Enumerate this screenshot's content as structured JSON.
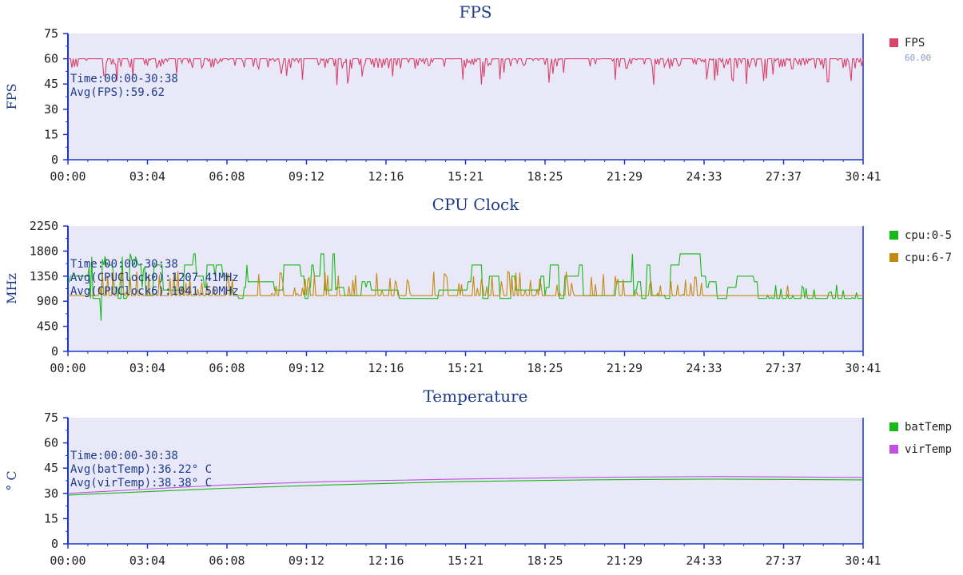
{
  "x_ticks": [
    "00:00",
    "03:04",
    "06:08",
    "09:12",
    "12:16",
    "15:21",
    "18:25",
    "21:29",
    "24:33",
    "27:37",
    "30:41"
  ],
  "colors": {
    "plot_bg": "#e8e8f8",
    "axis": "#1a36d0",
    "title": "#1d3b8a"
  },
  "chart_data": [
    {
      "type": "line",
      "title": "FPS",
      "ylabel": "FPS",
      "ylim": [
        0,
        75
      ],
      "y_ticks": [
        "0",
        "15",
        "30",
        "45",
        "60",
        "75"
      ],
      "xlim_seconds": [
        0,
        1841
      ],
      "annotations": [
        "Time:00:00-30:38",
        "Avg(FPS):59.62"
      ],
      "series": [
        {
          "name": "FPS",
          "color": "#d9436a",
          "legend_value": "60.00",
          "baseline": 60,
          "noise": "drops"
        }
      ]
    },
    {
      "type": "line",
      "title": "CPU Clock",
      "ylabel": "MHz",
      "ylim": [
        0,
        2250
      ],
      "y_ticks": [
        "0",
        "450",
        "900",
        "1350",
        "1800",
        "2250"
      ],
      "xlim_seconds": [
        0,
        1841
      ],
      "annotations": [
        "Time:00:00-30:38",
        "Avg(CPUClock0):1207.41MHz",
        "Avg(CPUClock6):1041.50MHz"
      ],
      "series": [
        {
          "name": "cpu:0-5",
          "color": "#18b818",
          "baseline": 1100,
          "noise": "step"
        },
        {
          "name": "cpu:6-7",
          "color": "#c28a10",
          "baseline": 1000,
          "noise": "spikes"
        }
      ]
    },
    {
      "type": "line",
      "title": "Temperature",
      "ylabel": "° C",
      "ylim": [
        0,
        75
      ],
      "y_ticks": [
        "0",
        "15",
        "30",
        "45",
        "60",
        "75"
      ],
      "xlim_seconds": [
        0,
        1841
      ],
      "annotations": [
        "Time:00:00-30:38",
        "Avg(batTemp):36.22° C",
        "Avg(virTemp):38.38° C"
      ],
      "series": [
        {
          "name": "batTemp",
          "color": "#18b818",
          "points": [
            [
              0,
              29
            ],
            [
              180,
              31
            ],
            [
              360,
              33
            ],
            [
              600,
              35
            ],
            [
              900,
              37
            ],
            [
              1200,
              38
            ],
            [
              1500,
              38.5
            ],
            [
              1841,
              38
            ]
          ]
        },
        {
          "name": "virTemp",
          "color": "#c24fe0",
          "points": [
            [
              0,
              30
            ],
            [
              180,
              32.5
            ],
            [
              360,
              35
            ],
            [
              600,
              37
            ],
            [
              900,
              38.5
            ],
            [
              1200,
              39.5
            ],
            [
              1500,
              40
            ],
            [
              1841,
              39.5
            ]
          ]
        }
      ]
    }
  ]
}
